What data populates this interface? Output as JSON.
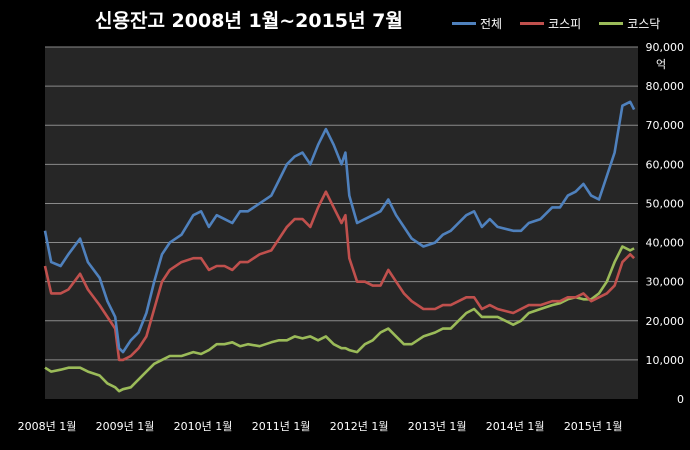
{
  "chart_data": {
    "type": "line",
    "title": "신용잔고 2008년 1월~2015년 7월",
    "ylabel": "억",
    "xlabel": "",
    "ylim": [
      0,
      90000
    ],
    "y_ticks": [
      0,
      10000,
      20000,
      30000,
      40000,
      50000,
      60000,
      70000,
      80000,
      90000
    ],
    "y_tick_labels": [
      "0",
      "10,000",
      "20,000",
      "30,000",
      "40,000",
      "50,000",
      "60,000",
      "70,000",
      "80,000",
      "90,000"
    ],
    "x_tick_labels": [
      "2008년 1월",
      "2009년 1월",
      "2010년 1월",
      "2011년 1월",
      "2012년 1월",
      "2013년 1월",
      "2014년 1월",
      "2015년 1월"
    ],
    "x_range": [
      2008.0,
      2015.6
    ],
    "grid": true,
    "legend_position": "top-right",
    "background": "#262626",
    "series": [
      {
        "name": "전체",
        "color": "#4f81bd",
        "x": [
          2008.0,
          2008.08,
          2008.2,
          2008.3,
          2008.45,
          2008.55,
          2008.7,
          2008.8,
          2008.9,
          2008.95,
          2009.0,
          2009.1,
          2009.2,
          2009.3,
          2009.4,
          2009.5,
          2009.6,
          2009.75,
          2009.9,
          2010.0,
          2010.1,
          2010.2,
          2010.3,
          2010.4,
          2010.5,
          2010.6,
          2010.75,
          2010.9,
          2011.0,
          2011.1,
          2011.2,
          2011.3,
          2011.4,
          2011.5,
          2011.6,
          2011.7,
          2011.8,
          2011.85,
          2011.9,
          2012.0,
          2012.1,
          2012.2,
          2012.3,
          2012.4,
          2012.5,
          2012.6,
          2012.7,
          2012.85,
          2013.0,
          2013.1,
          2013.2,
          2013.3,
          2013.4,
          2013.5,
          2013.6,
          2013.7,
          2013.8,
          2014.0,
          2014.1,
          2014.2,
          2014.35,
          2014.5,
          2014.6,
          2014.7,
          2014.8,
          2014.9,
          2015.0,
          2015.1,
          2015.2,
          2015.3,
          2015.4,
          2015.5,
          2015.55
        ],
        "values": [
          43000,
          35000,
          34000,
          37000,
          41000,
          35000,
          31000,
          25000,
          21000,
          13000,
          12000,
          15000,
          17000,
          22000,
          30000,
          37000,
          40000,
          42000,
          47000,
          48000,
          44000,
          47000,
          46000,
          45000,
          48000,
          48000,
          50000,
          52000,
          56000,
          60000,
          62000,
          63000,
          60000,
          65000,
          69000,
          65000,
          60000,
          63000,
          52000,
          45000,
          46000,
          47000,
          48000,
          51000,
          47000,
          44000,
          41000,
          39000,
          40000,
          42000,
          43000,
          45000,
          47000,
          48000,
          44000,
          46000,
          44000,
          43000,
          43000,
          45000,
          46000,
          49000,
          49000,
          52000,
          53000,
          55000,
          52000,
          51000,
          57000,
          63000,
          75000,
          76000,
          74000
        ]
      },
      {
        "name": "코스피",
        "color": "#c0504d",
        "x": [
          2008.0,
          2008.08,
          2008.2,
          2008.3,
          2008.45,
          2008.55,
          2008.7,
          2008.8,
          2008.9,
          2008.95,
          2009.0,
          2009.1,
          2009.2,
          2009.3,
          2009.4,
          2009.5,
          2009.6,
          2009.75,
          2009.9,
          2010.0,
          2010.1,
          2010.2,
          2010.3,
          2010.4,
          2010.5,
          2010.6,
          2010.75,
          2010.9,
          2011.0,
          2011.1,
          2011.2,
          2011.3,
          2011.4,
          2011.5,
          2011.6,
          2011.7,
          2011.8,
          2011.85,
          2011.9,
          2012.0,
          2012.1,
          2012.2,
          2012.3,
          2012.4,
          2012.5,
          2012.6,
          2012.7,
          2012.85,
          2013.0,
          2013.1,
          2013.2,
          2013.3,
          2013.4,
          2013.5,
          2013.6,
          2013.7,
          2013.8,
          2014.0,
          2014.1,
          2014.2,
          2014.35,
          2014.5,
          2014.6,
          2014.7,
          2014.8,
          2014.9,
          2015.0,
          2015.1,
          2015.2,
          2015.3,
          2015.4,
          2015.5,
          2015.55
        ],
        "values": [
          34000,
          27000,
          27000,
          28000,
          32000,
          28000,
          24000,
          21000,
          18000,
          10000,
          10000,
          11000,
          13000,
          16000,
          23000,
          30000,
          33000,
          35000,
          36000,
          36000,
          33000,
          34000,
          34000,
          33000,
          35000,
          35000,
          37000,
          38000,
          41000,
          44000,
          46000,
          46000,
          44000,
          49000,
          53000,
          49000,
          45000,
          47000,
          36000,
          30000,
          30000,
          29000,
          29000,
          33000,
          30000,
          27000,
          25000,
          23000,
          23000,
          24000,
          24000,
          25000,
          26000,
          26000,
          23000,
          24000,
          23000,
          22000,
          23000,
          24000,
          24000,
          25000,
          25000,
          26000,
          26000,
          27000,
          25000,
          26000,
          27000,
          29000,
          35000,
          37000,
          36000
        ]
      },
      {
        "name": "코스닥",
        "color": "#9bbb59",
        "x": [
          2008.0,
          2008.08,
          2008.2,
          2008.3,
          2008.45,
          2008.55,
          2008.7,
          2008.8,
          2008.9,
          2008.95,
          2009.0,
          2009.1,
          2009.2,
          2009.3,
          2009.4,
          2009.5,
          2009.6,
          2009.75,
          2009.9,
          2010.0,
          2010.1,
          2010.2,
          2010.3,
          2010.4,
          2010.5,
          2010.6,
          2010.75,
          2010.9,
          2011.0,
          2011.1,
          2011.2,
          2011.3,
          2011.4,
          2011.5,
          2011.6,
          2011.7,
          2011.8,
          2011.85,
          2011.9,
          2012.0,
          2012.1,
          2012.2,
          2012.3,
          2012.4,
          2012.5,
          2012.6,
          2012.7,
          2012.85,
          2013.0,
          2013.1,
          2013.2,
          2013.3,
          2013.4,
          2013.5,
          2013.6,
          2013.7,
          2013.8,
          2014.0,
          2014.1,
          2014.2,
          2014.35,
          2014.5,
          2014.6,
          2014.7,
          2014.8,
          2014.9,
          2015.0,
          2015.1,
          2015.2,
          2015.3,
          2015.4,
          2015.5,
          2015.55
        ],
        "values": [
          8000,
          7000,
          7500,
          8000,
          8000,
          7000,
          6000,
          4000,
          3000,
          2000,
          2500,
          3000,
          5000,
          7000,
          9000,
          10000,
          11000,
          11000,
          12000,
          11500,
          12500,
          14000,
          14000,
          14500,
          13500,
          14000,
          13500,
          14500,
          15000,
          15000,
          16000,
          15500,
          16000,
          15000,
          16000,
          14000,
          13000,
          13000,
          12500,
          12000,
          14000,
          15000,
          17000,
          18000,
          16000,
          14000,
          14000,
          16000,
          17000,
          18000,
          18000,
          20000,
          22000,
          23000,
          21000,
          21000,
          21000,
          19000,
          20000,
          22000,
          23000,
          24000,
          24500,
          25500,
          26000,
          25500,
          25500,
          27000,
          30000,
          35000,
          39000,
          38000,
          38500
        ]
      }
    ]
  }
}
